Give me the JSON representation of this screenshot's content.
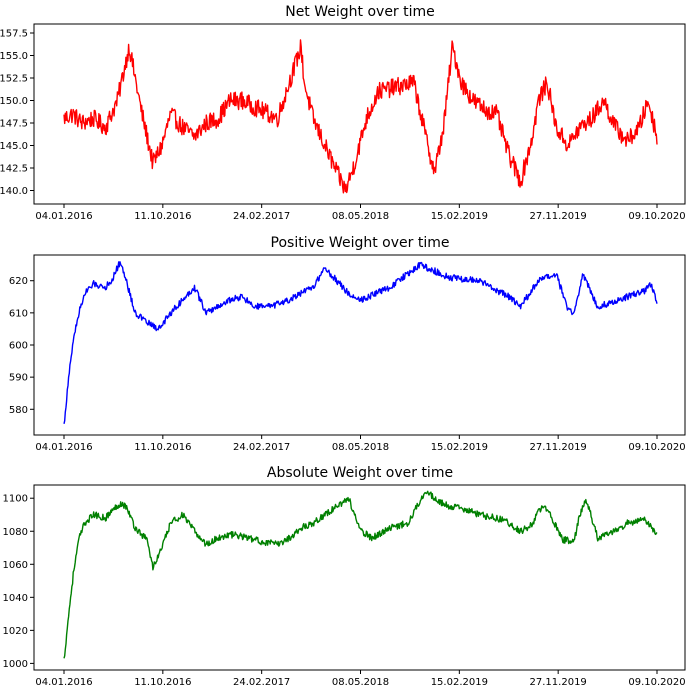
{
  "chart_data": [
    {
      "type": "line",
      "title": "Net Weight over time",
      "color": "#ff0000",
      "x_ticks": [
        "04.01.2016",
        "11.10.2016",
        "24.02.2017",
        "08.05.2018",
        "15.02.2019",
        "27.11.2019",
        "09.10.2020"
      ],
      "y_ticks": [
        "140.0",
        "142.5",
        "145.0",
        "147.5",
        "150.0",
        "152.5",
        "155.0",
        "157.5"
      ],
      "ylim": [
        138.5,
        158.5
      ],
      "series": [
        {
          "x": [
            0,
            0.015,
            0.03,
            0.05,
            0.07,
            0.09,
            0.11,
            0.13,
            0.15,
            0.165,
            0.18,
            0.2,
            0.22,
            0.24,
            0.26,
            0.28,
            0.3,
            0.33,
            0.36,
            0.38,
            0.4,
            0.405,
            0.42,
            0.44,
            0.46,
            0.475,
            0.49,
            0.51,
            0.53,
            0.56,
            0.59,
            0.61,
            0.625,
            0.64,
            0.655,
            0.67,
            0.69,
            0.71,
            0.73,
            0.75,
            0.77,
            0.79,
            0.8,
            0.815,
            0.83,
            0.85,
            0.87,
            0.89,
            0.91,
            0.93,
            0.95,
            0.97,
            0.985,
            1.0
          ],
          "values": [
            148,
            148.5,
            147.5,
            148,
            147,
            150,
            156,
            149,
            143,
            145,
            148.5,
            147,
            146,
            147.5,
            148,
            150,
            150,
            149,
            148,
            152,
            156,
            152,
            148,
            145,
            142,
            140,
            143,
            148,
            151,
            151.5,
            152,
            146,
            142,
            147,
            156,
            152,
            150,
            149,
            148.5,
            144,
            141,
            146,
            150,
            152,
            147,
            145,
            147,
            148,
            150,
            147,
            145.5,
            147,
            150,
            146
          ]
        }
      ]
    },
    {
      "type": "line",
      "title": "Positive Weight over time",
      "color": "#0000ff",
      "x_ticks": [
        "04.01.2016",
        "11.10.2016",
        "24.02.2017",
        "08.05.2018",
        "15.02.2019",
        "27.11.2019",
        "09.10.2020"
      ],
      "y_ticks": [
        "580",
        "590",
        "600",
        "610",
        "620"
      ],
      "ylim": [
        572,
        628
      ],
      "series": [
        {
          "x": [
            0,
            0.008,
            0.016,
            0.025,
            0.035,
            0.05,
            0.07,
            0.08,
            0.095,
            0.105,
            0.12,
            0.14,
            0.16,
            0.18,
            0.2,
            0.22,
            0.24,
            0.26,
            0.28,
            0.3,
            0.32,
            0.35,
            0.38,
            0.4,
            0.42,
            0.44,
            0.46,
            0.48,
            0.5,
            0.55,
            0.6,
            0.65,
            0.7,
            0.75,
            0.77,
            0.8,
            0.83,
            0.85,
            0.86,
            0.875,
            0.9,
            0.92,
            0.95,
            0.98,
            0.99,
            1.0
          ],
          "values": [
            575,
            590,
            602,
            610,
            616,
            619,
            618,
            620,
            626,
            620,
            610,
            607,
            605,
            610,
            614,
            618,
            610,
            612,
            614,
            615,
            612,
            612,
            614,
            616,
            618,
            624,
            620,
            616,
            614,
            618,
            625,
            621,
            620,
            615,
            612,
            620,
            622,
            611,
            610,
            622,
            612,
            613,
            615,
            617,
            619,
            613
          ]
        }
      ]
    },
    {
      "type": "line",
      "title": "Absolute  Weight over time",
      "color": "#008000",
      "x_ticks": [
        "04.01.2016",
        "11.10.2016",
        "24.02.2017",
        "08.05.2018",
        "15.02.2019",
        "27.11.2019",
        "09.10.2020"
      ],
      "y_ticks": [
        "1000",
        "1020",
        "1040",
        "1060",
        "1080",
        "1100"
      ],
      "ylim": [
        996,
        1108
      ],
      "series": [
        {
          "x": [
            0,
            0.008,
            0.016,
            0.025,
            0.035,
            0.05,
            0.07,
            0.08,
            0.095,
            0.105,
            0.12,
            0.14,
            0.15,
            0.165,
            0.18,
            0.2,
            0.22,
            0.24,
            0.26,
            0.28,
            0.3,
            0.33,
            0.36,
            0.38,
            0.4,
            0.42,
            0.44,
            0.46,
            0.48,
            0.5,
            0.52,
            0.55,
            0.58,
            0.61,
            0.63,
            0.65,
            0.67,
            0.7,
            0.73,
            0.75,
            0.77,
            0.79,
            0.8,
            0.81,
            0.82,
            0.84,
            0.86,
            0.87,
            0.88,
            0.9,
            0.93,
            0.95,
            0.98,
            1.0
          ],
          "values": [
            1002,
            1030,
            1055,
            1075,
            1085,
            1090,
            1088,
            1092,
            1097,
            1095,
            1082,
            1075,
            1058,
            1070,
            1085,
            1090,
            1080,
            1072,
            1076,
            1078,
            1077,
            1074,
            1072,
            1076,
            1082,
            1085,
            1090,
            1095,
            1100,
            1080,
            1076,
            1082,
            1085,
            1105,
            1098,
            1095,
            1094,
            1090,
            1088,
            1085,
            1080,
            1084,
            1092,
            1095,
            1090,
            1075,
            1074,
            1090,
            1100,
            1076,
            1080,
            1085,
            1087,
            1078
          ]
        }
      ]
    }
  ]
}
